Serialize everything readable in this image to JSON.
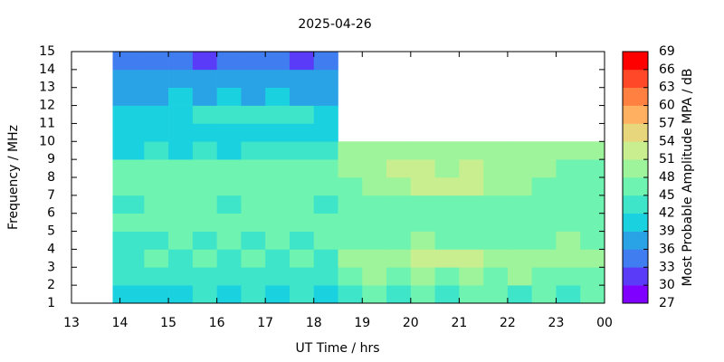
{
  "chart_data": {
    "type": "heatmap",
    "title": "2025-04-26",
    "xlabel": "UT Time / hrs",
    "ylabel": "Frequency / MHz",
    "colorbar_label": "Most Probable Amplitude MPA / dB",
    "xlim": [
      13,
      24
    ],
    "xticks": [
      13,
      14,
      15,
      16,
      17,
      18,
      19,
      20,
      21,
      22,
      23,
      {
        "value": 24,
        "label": "00"
      }
    ],
    "ylim": [
      1,
      15
    ],
    "yticks": [
      1,
      2,
      3,
      4,
      5,
      6,
      7,
      8,
      9,
      10,
      11,
      12,
      13,
      14,
      15
    ],
    "zlim": [
      27,
      69
    ],
    "zticks": [
      27,
      30,
      33,
      36,
      39,
      42,
      45,
      48,
      51,
      54,
      57,
      60,
      63,
      66,
      69
    ],
    "colors": [
      "#8000ff",
      "#5a3cf8",
      "#3f7df0",
      "#2aa2e6",
      "#1ad1e0",
      "#3ee5c9",
      "#6ef3b0",
      "#9ef49a",
      "#c9ee8f",
      "#e8d67d",
      "#ffb060",
      "#ff8040",
      "#ff4828",
      "#ff0000"
    ],
    "x_edges": [
      13.85,
      14.5,
      15,
      15.5,
      16,
      16.5,
      17,
      17.5,
      18,
      18.5,
      19,
      19.5,
      20,
      20.5,
      21,
      21.5,
      22,
      22.5,
      23,
      23.5,
      24
    ],
    "y_edges": [
      1,
      2,
      3,
      4,
      5,
      6,
      7,
      8,
      9,
      10,
      11,
      12,
      13,
      14,
      15
    ],
    "z": [
      [
        40,
        41,
        41,
        42,
        41,
        42,
        41,
        42,
        41,
        44,
        45,
        44,
        45,
        44,
        45,
        45,
        44,
        45,
        44,
        45
      ],
      [
        42,
        43,
        42,
        43,
        43,
        42,
        43,
        42,
        43,
        47,
        48,
        47,
        48,
        47,
        48,
        47,
        48,
        47,
        46,
        47
      ],
      [
        44,
        45,
        44,
        45,
        44,
        45,
        44,
        45,
        44,
        48,
        49,
        50,
        51,
        52,
        51,
        50,
        49,
        48,
        49,
        48
      ],
      [
        43,
        44,
        45,
        44,
        45,
        44,
        45,
        44,
        45,
        47,
        46,
        47,
        48,
        47,
        46,
        47,
        46,
        47,
        48,
        47
      ],
      [
        45,
        46,
        45,
        46,
        45,
        46,
        45,
        46,
        45,
        46,
        47,
        46,
        47,
        46,
        47,
        46,
        47,
        46,
        47,
        46
      ],
      [
        44,
        45,
        46,
        45,
        44,
        45,
        46,
        45,
        44,
        45,
        46,
        47,
        46,
        45,
        46,
        45,
        46,
        45,
        46,
        45
      ],
      [
        45,
        46,
        45,
        46,
        45,
        46,
        45,
        46,
        45,
        47,
        48,
        49,
        51,
        52,
        51,
        49,
        48,
        47,
        46,
        47
      ],
      [
        46,
        47,
        46,
        47,
        46,
        47,
        46,
        47,
        47,
        49,
        50,
        51,
        51,
        50,
        51,
        50,
        49,
        48,
        47,
        47
      ],
      [
        41,
        42,
        41,
        42,
        41,
        42,
        43,
        42,
        42,
        48,
        49,
        50,
        49,
        48,
        49,
        48,
        49,
        50,
        49,
        48
      ],
      [
        39,
        39,
        40,
        39,
        40,
        39,
        40,
        39,
        40,
        null,
        null,
        null,
        null,
        null,
        null,
        null,
        null,
        null,
        null,
        null
      ],
      [
        40,
        40,
        41,
        42,
        42,
        43,
        43,
        42,
        41,
        null,
        null,
        null,
        null,
        null,
        null,
        null,
        null,
        null,
        null,
        null
      ],
      [
        38,
        38,
        39,
        38,
        39,
        38,
        39,
        38,
        38,
        null,
        null,
        null,
        null,
        null,
        null,
        null,
        null,
        null,
        null,
        null
      ],
      [
        36,
        37,
        36,
        37,
        36,
        37,
        36,
        37,
        37,
        null,
        null,
        null,
        null,
        null,
        null,
        null,
        null,
        null,
        null,
        null
      ],
      [
        33,
        34,
        33,
        32,
        33,
        34,
        33,
        32,
        33,
        null,
        null,
        null,
        null,
        null,
        null,
        null,
        null,
        null,
        null,
        null
      ]
    ]
  }
}
